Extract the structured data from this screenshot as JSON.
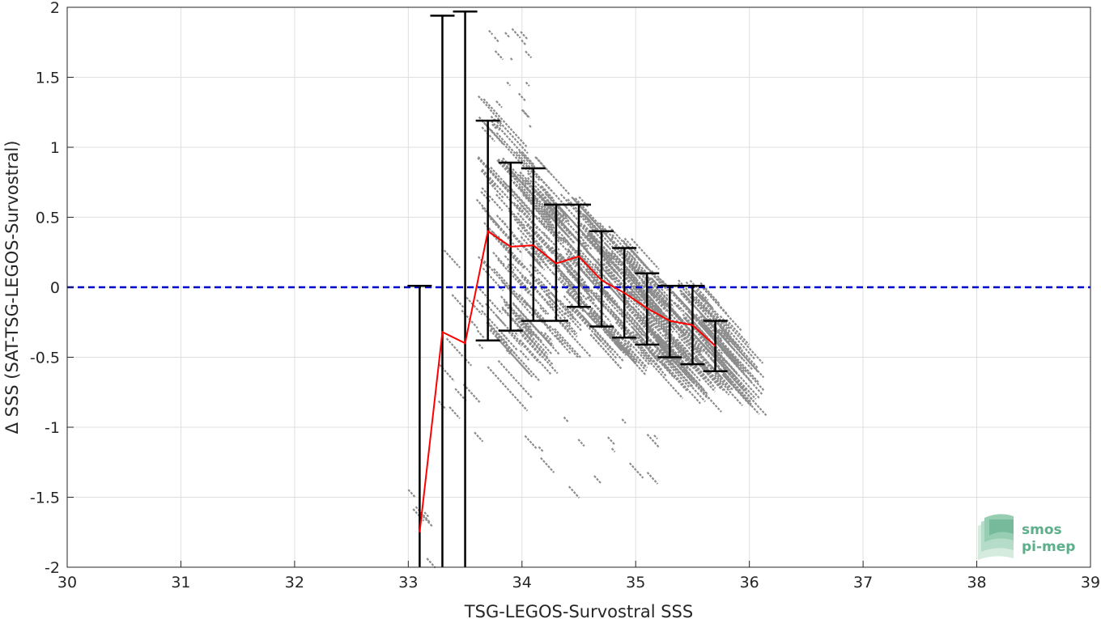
{
  "chart_data": {
    "type": "scatter",
    "xlabel": "TSG-LEGOS-Survostral SSS",
    "ylabel": "Δ SSS (SAT-TSG-LEGOS-Survostral)",
    "xlim": [
      30,
      39
    ],
    "ylim": [
      -2,
      2
    ],
    "xticks": [
      "30",
      "31",
      "32",
      "33",
      "34",
      "35",
      "36",
      "37",
      "38",
      "39"
    ],
    "yticks": [
      "-2",
      "-1.5",
      "-1",
      "-0.5",
      "0",
      "0.5",
      "1",
      "1.5",
      "2"
    ],
    "grid": true,
    "reference_line": {
      "y": 0,
      "style": "dashed",
      "color": "#0000cc"
    },
    "scatter_color": "#8c8c8c",
    "scatter_extent": {
      "x_range": [
        33.1,
        35.7
      ],
      "y_range": [
        -1.5,
        1.95
      ]
    },
    "mean_line_color": "#ff0000",
    "errorbar_color": "#000000",
    "binned_stats": [
      {
        "x": 33.1,
        "mean": -1.75,
        "low": -2.0,
        "high": 0.01
      },
      {
        "x": 33.3,
        "mean": -0.32,
        "low": -2.0,
        "high": 1.94
      },
      {
        "x": 33.5,
        "mean": -0.4,
        "low": -2.0,
        "high": 1.97
      },
      {
        "x": 33.7,
        "mean": 0.4,
        "low": -0.38,
        "high": 1.19
      },
      {
        "x": 33.9,
        "mean": 0.29,
        "low": -0.31,
        "high": 0.89
      },
      {
        "x": 34.1,
        "mean": 0.3,
        "low": -0.24,
        "high": 0.85
      },
      {
        "x": 34.3,
        "mean": 0.17,
        "low": -0.24,
        "high": 0.59
      },
      {
        "x": 34.5,
        "mean": 0.22,
        "low": -0.14,
        "high": 0.59
      },
      {
        "x": 34.7,
        "mean": 0.05,
        "low": -0.28,
        "high": 0.4
      },
      {
        "x": 34.9,
        "mean": -0.04,
        "low": -0.36,
        "high": 0.28
      },
      {
        "x": 35.1,
        "mean": -0.15,
        "low": -0.41,
        "high": 0.1
      },
      {
        "x": 35.3,
        "mean": -0.24,
        "low": -0.5,
        "high": 0.01
      },
      {
        "x": 35.5,
        "mean": -0.27,
        "low": -0.55,
        "high": 0.01
      },
      {
        "x": 35.7,
        "mean": -0.42,
        "low": -0.6,
        "high": -0.24
      }
    ]
  },
  "logo": {
    "line1": "smos",
    "line2": "pi-mep",
    "color": "#5fae8a"
  }
}
